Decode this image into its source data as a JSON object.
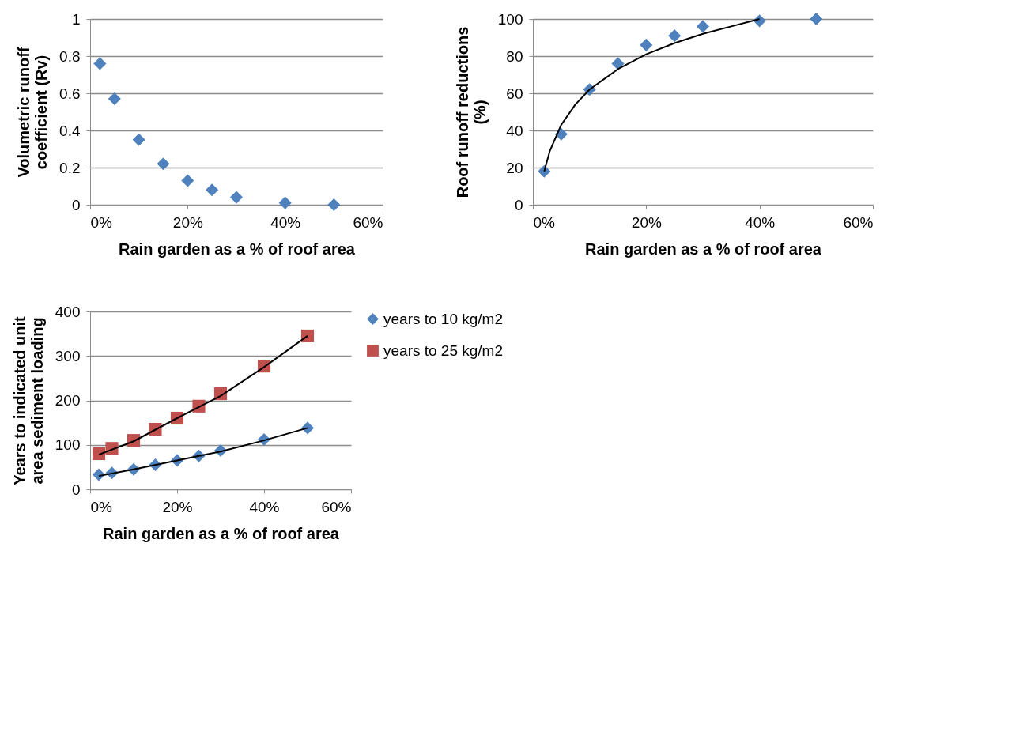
{
  "chart_data": [
    {
      "type": "scatter",
      "xlabel": "Rain garden as a % of roof area",
      "ylabel": "Volumetric runoff coefficient (Rv)",
      "x": [
        0.02,
        0.05,
        0.1,
        0.15,
        0.2,
        0.25,
        0.3,
        0.4,
        0.5
      ],
      "series": [
        {
          "color": "#4f81bd",
          "marker": "diamond",
          "values": [
            0.76,
            0.57,
            0.35,
            0.22,
            0.13,
            0.08,
            0.04,
            0.01,
            0.0
          ]
        }
      ],
      "xlim": [
        0,
        0.6
      ],
      "xticks": [
        {
          "value": 0,
          "label": "0%"
        },
        {
          "value": 0.2,
          "label": "20%"
        },
        {
          "value": 0.4,
          "label": "40%"
        },
        {
          "value": 0.6,
          "label": "60%"
        }
      ],
      "ylim": [
        0,
        1
      ],
      "yticks": [
        0,
        0.2,
        0.4,
        0.6,
        0.8,
        1
      ],
      "grid": "y",
      "legend": false
    },
    {
      "type": "scatter",
      "xlabel": "Rain garden as a % of roof area",
      "ylabel": "Roof runoff reductions (%)",
      "x": [
        0.02,
        0.05,
        0.1,
        0.15,
        0.2,
        0.25,
        0.3,
        0.4,
        0.5
      ],
      "series": [
        {
          "color": "#4f81bd",
          "marker": "diamond",
          "values": [
            18,
            38,
            62,
            76,
            86,
            91,
            96,
            99,
            100
          ]
        },
        {
          "type": "line",
          "color": "#000000",
          "x": [
            0.02,
            0.03,
            0.05,
            0.075,
            0.1,
            0.15,
            0.2,
            0.25,
            0.3,
            0.35,
            0.4
          ],
          "values": [
            18,
            29,
            43,
            54,
            62,
            73,
            81,
            87,
            92,
            96,
            100
          ]
        }
      ],
      "xlim": [
        0,
        0.6
      ],
      "xticks": [
        {
          "value": 0,
          "label": "0%"
        },
        {
          "value": 0.2,
          "label": "20%"
        },
        {
          "value": 0.4,
          "label": "40%"
        },
        {
          "value": 0.6,
          "label": "60%"
        }
      ],
      "ylim": [
        0,
        100
      ],
      "yticks": [
        0,
        20,
        40,
        60,
        80,
        100
      ],
      "grid": "y",
      "legend": false
    },
    {
      "type": "scatter",
      "xlabel": "Rain garden as a % of roof area",
      "ylabel": "Years to indicated unit area sediment loading",
      "x": [
        0.02,
        0.05,
        0.1,
        0.15,
        0.2,
        0.25,
        0.3,
        0.4,
        0.5
      ],
      "series": [
        {
          "name": "years to 10 kg/m2",
          "color": "#4f81bd",
          "marker": "diamond",
          "values": [
            33,
            37,
            45,
            55,
            65,
            75,
            87,
            112,
            138
          ]
        },
        {
          "name": "years to 25 kg/m2",
          "color": "#c0504d",
          "marker": "square",
          "values": [
            80,
            92,
            110,
            135,
            160,
            187,
            215,
            277,
            345
          ]
        },
        {
          "type": "line",
          "color": "#000000",
          "x": [
            0.02,
            0.1,
            0.2,
            0.3,
            0.4,
            0.5
          ],
          "values": [
            30,
            45,
            65,
            85,
            110,
            138
          ]
        },
        {
          "type": "line",
          "color": "#000000",
          "x": [
            0.02,
            0.1,
            0.2,
            0.3,
            0.4,
            0.5
          ],
          "values": [
            78,
            108,
            160,
            210,
            275,
            345
          ]
        }
      ],
      "xlim": [
        0,
        0.6
      ],
      "xticks": [
        {
          "value": 0,
          "label": "0%"
        },
        {
          "value": 0.2,
          "label": "20%"
        },
        {
          "value": 0.4,
          "label": "40%"
        },
        {
          "value": 0.6,
          "label": "60%"
        }
      ],
      "ylim": [
        0,
        400
      ],
      "yticks": [
        0,
        100,
        200,
        300,
        400
      ],
      "grid": "y",
      "legend": "right"
    }
  ]
}
